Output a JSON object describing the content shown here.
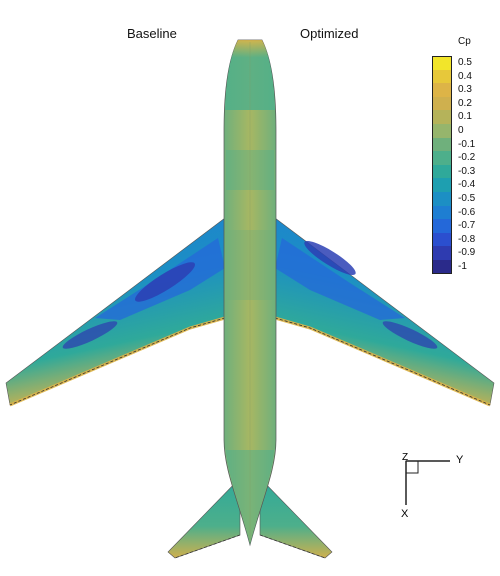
{
  "labels": {
    "left": "Baseline",
    "right": "Optimized"
  },
  "legend": {
    "title": "Cp",
    "levels": [
      {
        "value": "0.5",
        "color": "#f2e52a"
      },
      {
        "value": "0.4",
        "color": "#e7c83a"
      },
      {
        "value": "0.3",
        "color": "#ddb447"
      },
      {
        "value": "0.2",
        "color": "#cfb04e"
      },
      {
        "value": "0.1",
        "color": "#b5b35a"
      },
      {
        "value": "0",
        "color": "#96b56c"
      },
      {
        "value": "-0.1",
        "color": "#6fb07c"
      },
      {
        "value": "-0.2",
        "color": "#4daf8b"
      },
      {
        "value": "-0.3",
        "color": "#2fa99a"
      },
      {
        "value": "-0.4",
        "color": "#1e9fb0"
      },
      {
        "value": "-0.5",
        "color": "#1c8fc4"
      },
      {
        "value": "-0.6",
        "color": "#1e7ed2"
      },
      {
        "value": "-0.7",
        "color": "#2468d9"
      },
      {
        "value": "-0.8",
        "color": "#2b4fcf"
      },
      {
        "value": "-0.9",
        "color": "#2e3bb0"
      },
      {
        "value": "-1",
        "color": "#2a2a8a"
      }
    ]
  },
  "axes": {
    "y_label": "Y",
    "x_label": "X",
    "z_label": "Z"
  },
  "colors": {
    "fuselage": "#92b87c",
    "wing_le": "#2a8fd0",
    "wing_te": "#d8b84a",
    "suction_core": "#2b3fb4"
  }
}
